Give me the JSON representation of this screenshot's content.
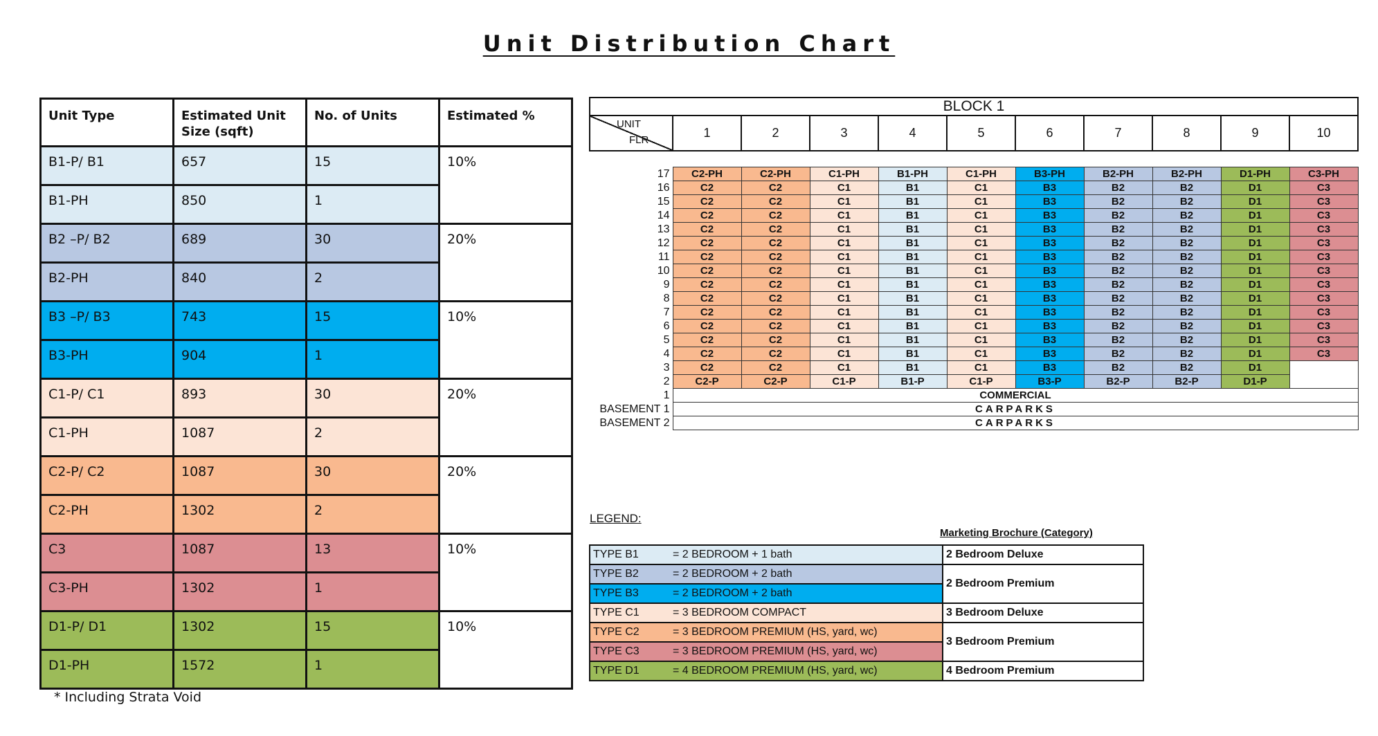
{
  "title": "Unit Distribution Chart",
  "colors": {
    "B1": "#dcebf4",
    "B2": "#b8c8e2",
    "B3": "#00adef",
    "C1": "#fce4d6",
    "C2": "#f9b98f",
    "C3": "#dc8e92",
    "D1": "#9cbb59"
  },
  "unit_table": {
    "headers": [
      "Unit Type",
      "Estimated Unit Size (sqft)",
      "No. of Units",
      "Estimated %"
    ],
    "groups": [
      {
        "color": "B1",
        "percent": "10%",
        "rows": [
          [
            "B1-P/ B1",
            "657",
            "15"
          ],
          [
            "B1-PH",
            "850",
            "1"
          ]
        ]
      },
      {
        "color": "B2",
        "percent": "20%",
        "rows": [
          [
            "B2 –P/ B2",
            "689",
            "30"
          ],
          [
            "B2-PH",
            "840",
            "2"
          ]
        ]
      },
      {
        "color": "B3",
        "percent": "10%",
        "rows": [
          [
            "B3 –P/ B3",
            "743",
            "15"
          ],
          [
            "B3-PH",
            "904",
            "1"
          ]
        ]
      },
      {
        "color": "C1",
        "percent": "20%",
        "rows": [
          [
            "C1-P/ C1",
            "893",
            "30"
          ],
          [
            "C1-PH",
            "1087",
            "2"
          ]
        ]
      },
      {
        "color": "C2",
        "percent": "20%",
        "rows": [
          [
            "C2-P/ C2",
            "1087",
            "30"
          ],
          [
            "C2-PH",
            "1302",
            "2"
          ]
        ]
      },
      {
        "color": "C3",
        "percent": "10%",
        "rows": [
          [
            "C3",
            "1087",
            "13"
          ],
          [
            "C3-PH",
            "1302",
            "1"
          ]
        ]
      },
      {
        "color": "D1",
        "percent": "10%",
        "rows": [
          [
            "D1-P/ D1",
            "1302",
            "15"
          ],
          [
            "D1-PH",
            "1572",
            "1"
          ]
        ]
      }
    ],
    "footnote": "* Including Strata Void"
  },
  "block": {
    "title": "BLOCK 1",
    "corner_unit": "UNIT",
    "corner_floor": "FLR",
    "unit_numbers": [
      "1",
      "2",
      "3",
      "4",
      "5",
      "6",
      "7",
      "8",
      "9",
      "10"
    ],
    "columns": [
      {
        "color": "C2",
        "ph": "C2-PH",
        "typ": "C2",
        "p": "C2-P"
      },
      {
        "color": "C2",
        "ph": "C2-PH",
        "typ": "C2",
        "p": "C2-P"
      },
      {
        "color": "C1",
        "ph": "C1-PH",
        "typ": "C1",
        "p": "C1-P"
      },
      {
        "color": "B1",
        "ph": "B1-PH",
        "typ": "B1",
        "p": "B1-P"
      },
      {
        "color": "C1",
        "ph": "C1-PH",
        "typ": "C1",
        "p": "C1-P"
      },
      {
        "color": "B3",
        "ph": "B3-PH",
        "typ": "B3",
        "p": "B3-P"
      },
      {
        "color": "B2",
        "ph": "B2-PH",
        "typ": "B2",
        "p": "B2-P"
      },
      {
        "color": "B2",
        "ph": "B2-PH",
        "typ": "B2",
        "p": "B2-P"
      },
      {
        "color": "D1",
        "ph": "D1-PH",
        "typ": "D1",
        "p": "D1-P"
      },
      {
        "color": "C3",
        "ph": "C3-PH",
        "typ": "C3",
        "p": ""
      }
    ],
    "floors": [
      "17",
      "16",
      "15",
      "14",
      "13",
      "12",
      "11",
      "10",
      "9",
      "8",
      "7",
      "6",
      "5",
      "4",
      "3",
      "2"
    ],
    "col10_last_floor": "4",
    "lower_levels": [
      {
        "floor": "1",
        "label": "COMMERCIAL"
      },
      {
        "floor": "BASEMENT 1",
        "label": "CARPARKS"
      },
      {
        "floor": "BASEMENT 2",
        "label": "CARPARKS"
      }
    ]
  },
  "legend": {
    "label": "LEGEND:",
    "marketing_header": "Marketing Brochure (Category)",
    "items": [
      {
        "type": "TYPE B1",
        "desc": "=  2 BEDROOM + 1 bath",
        "color": "B1"
      },
      {
        "type": "TYPE B2",
        "desc": "=  2 BEDROOM + 2 bath",
        "color": "B2"
      },
      {
        "type": "TYPE B3",
        "desc": "=  2 BEDROOM + 2 bath",
        "color": "B3"
      },
      {
        "type": "TYPE C1",
        "desc": "=  3 BEDROOM COMPACT",
        "color": "C1"
      },
      {
        "type": "TYPE C2",
        "desc": "=  3 BEDROOM PREMIUM (HS, yard, wc)",
        "color": "C2"
      },
      {
        "type": "TYPE C3",
        "desc": "=  3 BEDROOM PREMIUM (HS, yard, wc)",
        "color": "C3"
      },
      {
        "type": "TYPE D1",
        "desc": "=  4 BEDROOM PREMIUM (HS, yard, wc)",
        "color": "D1"
      }
    ],
    "categories": [
      {
        "label": "2 Bedroom Deluxe",
        "rows": 1
      },
      {
        "label": "2 Bedroom Premium",
        "rows": 2
      },
      {
        "label": "3 Bedroom Deluxe",
        "rows": 1
      },
      {
        "label": "3 Bedroom Premium",
        "rows": 2
      },
      {
        "label": "4 Bedroom Premium",
        "rows": 1
      }
    ]
  }
}
